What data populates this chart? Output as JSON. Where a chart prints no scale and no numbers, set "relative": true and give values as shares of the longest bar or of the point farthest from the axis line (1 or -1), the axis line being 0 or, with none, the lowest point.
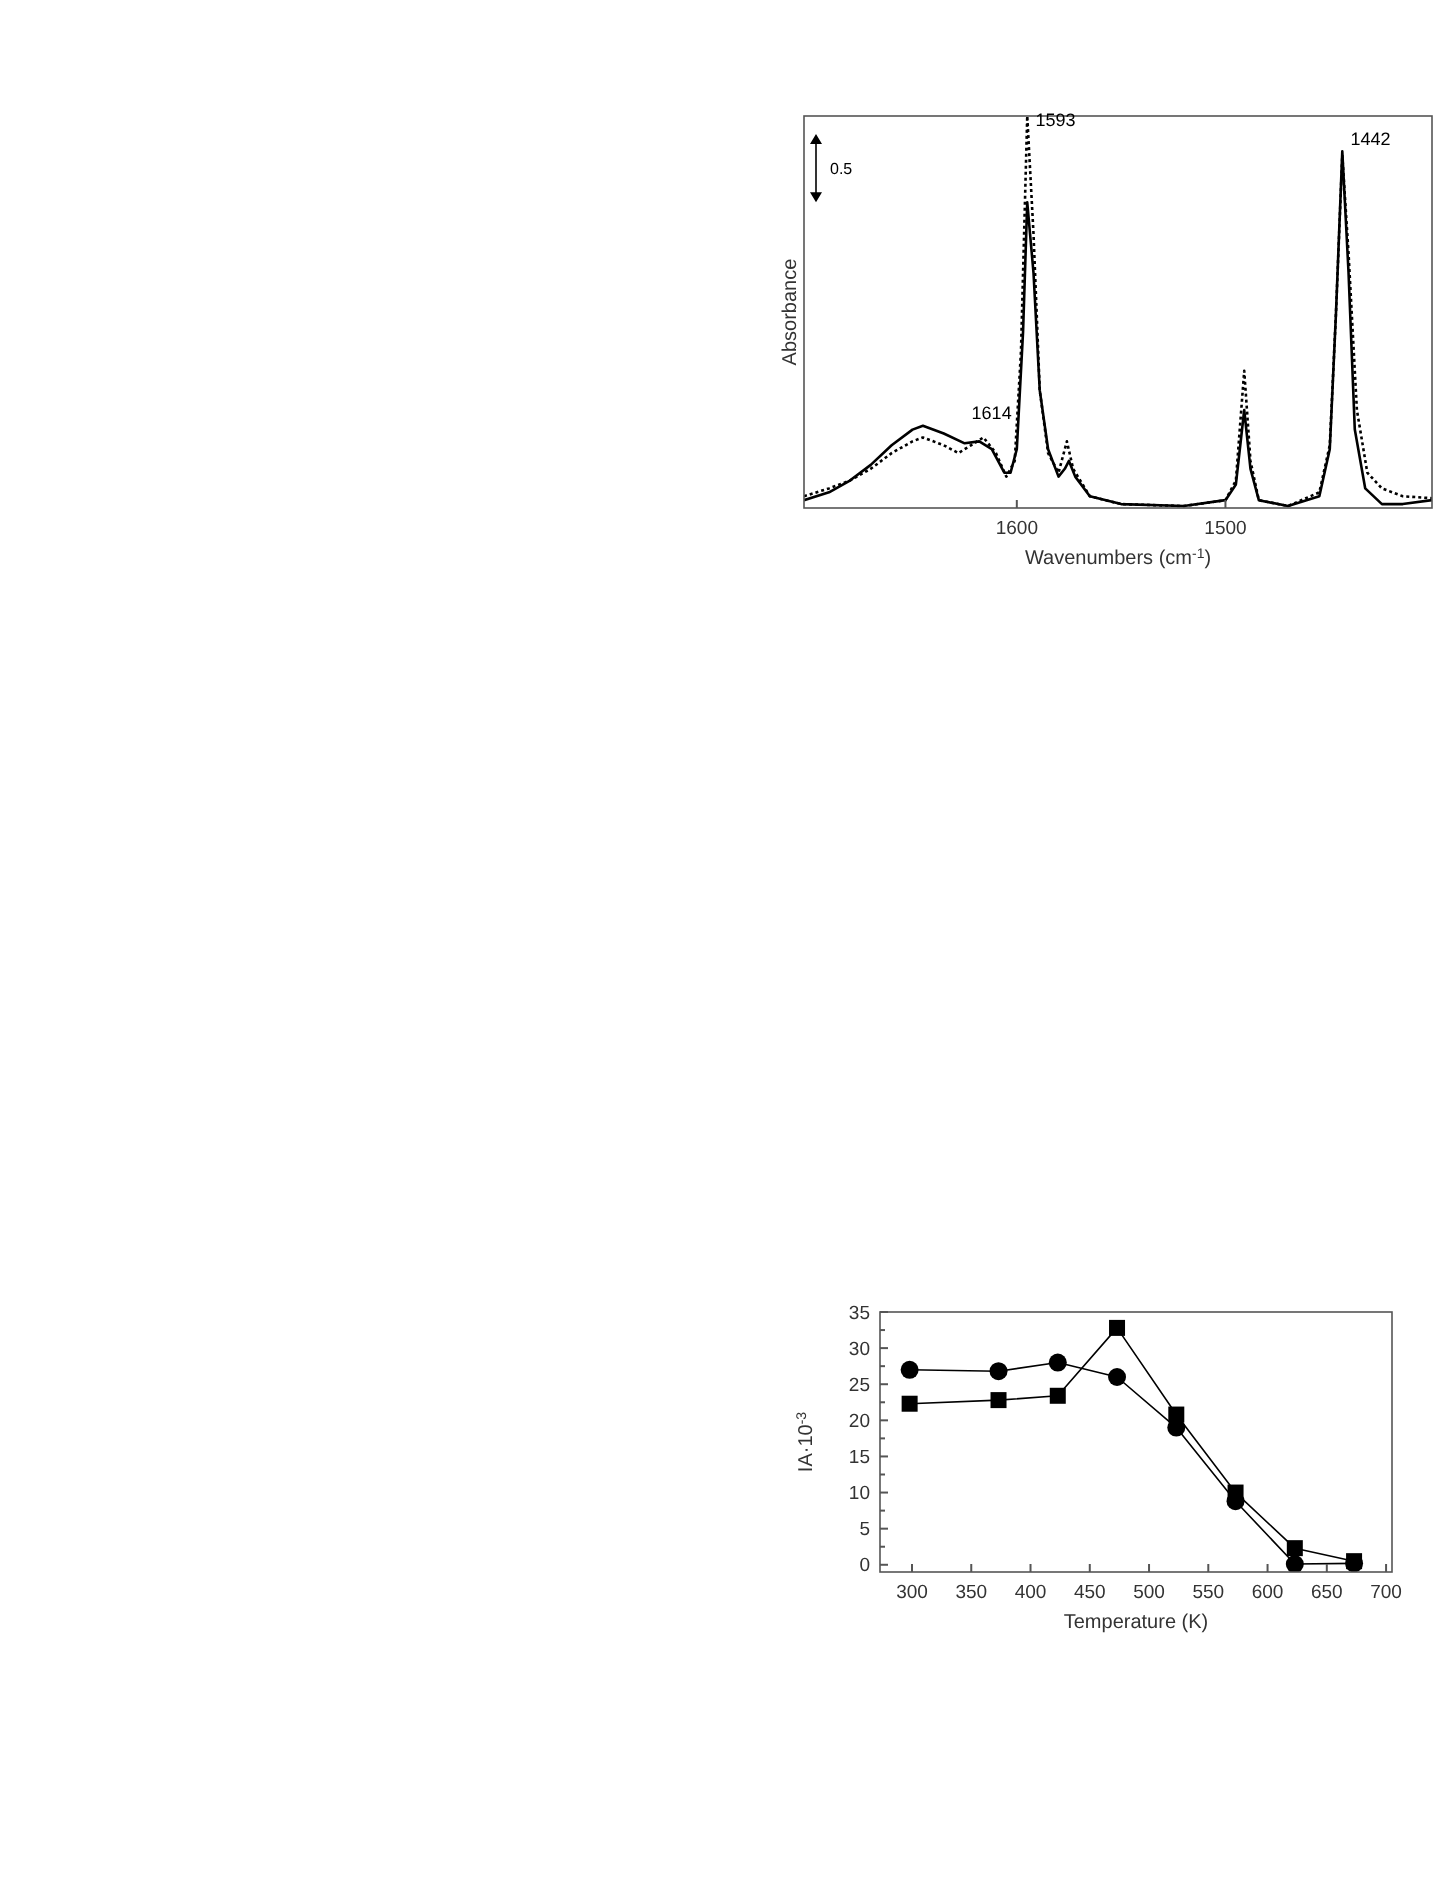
{
  "chart_data": [
    {
      "type": "line",
      "relative": true,
      "xlabel": "Wavenumbers (cm$^{-1}$)",
      "ylabel": "Absorbance",
      "xlim": [
        1702,
        1401
      ],
      "xticks": [
        1600,
        1500
      ],
      "tick_labels": "x",
      "grid": false,
      "marker": "none",
      "annotations": [
        "0.5",
        {
          "text": "1593",
          "x": 1593,
          "y": 1.0
        },
        {
          "text": "1614",
          "x": 1614,
          "y": 0.18
        },
        {
          "text": "1442",
          "x": 1442,
          "y": 0.91
        }
      ],
      "series": [
        {
          "color": "#000000",
          "line_style": "solid",
          "x": [
            1702,
            1690,
            1680,
            1670,
            1660,
            1650,
            1645,
            1635,
            1625,
            1618,
            1612,
            1606,
            1603,
            1600,
            1597,
            1595,
            1592,
            1589,
            1585,
            1580,
            1577,
            1575,
            1572,
            1565,
            1550,
            1520,
            1500,
            1495,
            1491,
            1488,
            1484,
            1470,
            1455,
            1450,
            1447,
            1444,
            1441,
            1438,
            1433,
            1425,
            1415,
            1401
          ],
          "values": [
            0.02,
            0.04,
            0.07,
            0.11,
            0.16,
            0.2,
            0.21,
            0.19,
            0.165,
            0.17,
            0.15,
            0.09,
            0.09,
            0.15,
            0.45,
            0.78,
            0.6,
            0.3,
            0.15,
            0.08,
            0.1,
            0.12,
            0.08,
            0.03,
            0.01,
            0.005,
            0.02,
            0.06,
            0.25,
            0.1,
            0.02,
            0.005,
            0.03,
            0.15,
            0.5,
            0.91,
            0.6,
            0.2,
            0.05,
            0.01,
            0.01,
            0.02
          ]
        },
        {
          "color": "#000000",
          "line_style": "dotted",
          "x": [
            1702,
            1690,
            1680,
            1670,
            1660,
            1650,
            1645,
            1635,
            1628,
            1622,
            1616,
            1610,
            1605,
            1601,
            1598,
            1595,
            1592,
            1589,
            1585,
            1580,
            1576,
            1573,
            1565,
            1550,
            1520,
            1500,
            1495,
            1491,
            1488,
            1484,
            1470,
            1455,
            1450,
            1447,
            1444,
            1441,
            1437,
            1432,
            1425,
            1415,
            1401
          ],
          "values": [
            0.03,
            0.05,
            0.07,
            0.1,
            0.14,
            0.17,
            0.18,
            0.16,
            0.14,
            0.16,
            0.18,
            0.14,
            0.08,
            0.12,
            0.4,
            1.0,
            0.7,
            0.3,
            0.14,
            0.09,
            0.17,
            0.1,
            0.03,
            0.01,
            0.005,
            0.02,
            0.07,
            0.35,
            0.12,
            0.02,
            0.005,
            0.04,
            0.16,
            0.5,
            0.9,
            0.65,
            0.25,
            0.09,
            0.05,
            0.03,
            0.025
          ]
        }
      ]
    },
    {
      "type": "line",
      "xlabel": "Temperature (K)",
      "ylabel": "IA·10$^{-3}$",
      "xlim": [
        273,
        705
      ],
      "xticks": [
        300,
        350,
        400,
        450,
        500,
        550,
        600,
        650,
        700
      ],
      "ylim": [
        -1,
        35
      ],
      "yticks": [
        0,
        5,
        10,
        15,
        20,
        25,
        30,
        35
      ],
      "grid": false,
      "x": [
        298,
        373,
        423,
        473,
        523,
        573,
        623,
        673
      ],
      "series": [
        {
          "color": "#000000",
          "marker": "square",
          "values": [
            22.3,
            22.8,
            23.4,
            32.8,
            20.8,
            10,
            2.3,
            0.5
          ]
        },
        {
          "color": "#000000",
          "marker": "circle",
          "values": [
            27,
            26.8,
            28,
            26,
            19,
            8.8,
            0.1,
            0.2
          ]
        }
      ]
    }
  ]
}
